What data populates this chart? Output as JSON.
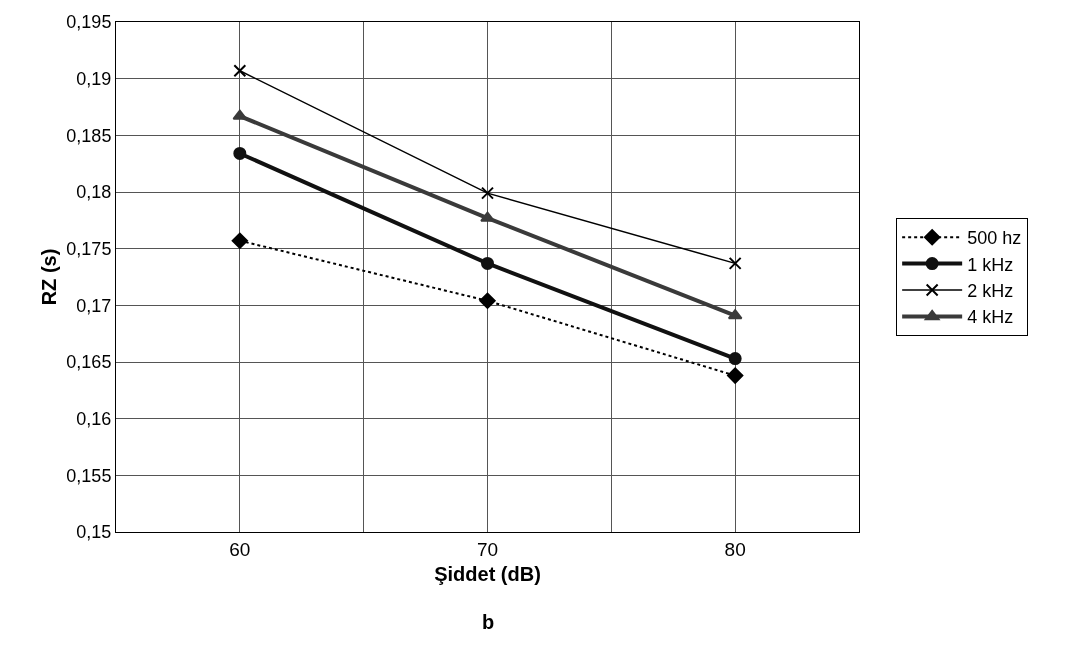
{
  "chart_data": {
    "type": "line",
    "xlabel": "Şiddet (dB)",
    "ylabel": "RZ (s)",
    "annotations": [
      "b"
    ],
    "x": [
      60,
      70,
      80
    ],
    "series": [
      {
        "name": "500 hz",
        "color": "#000000",
        "values": [
          0.1757,
          0.1704,
          0.1638
        ],
        "marker": "diamond",
        "line_style": "dotted"
      },
      {
        "name": "1 kHz",
        "color": "#111111",
        "values": [
          0.1834,
          0.1737,
          0.1653
        ],
        "marker": "circle",
        "line_style": "solid"
      },
      {
        "name": "2 kHz",
        "color": "#000000",
        "values": [
          0.1907,
          0.1799,
          0.1737
        ],
        "marker": "cross",
        "line_style": "solid"
      },
      {
        "name": "4 kHz",
        "color": "#3a3a3a",
        "values": [
          0.1867,
          0.1777,
          0.1691
        ],
        "marker": "triangle",
        "line_style": "solid"
      }
    ],
    "xlim": [
      55,
      85
    ],
    "xticks": [
      {
        "value": 55,
        "label": null
      },
      60,
      {
        "value": 65,
        "label": null
      },
      70,
      {
        "value": 75,
        "label": null
      },
      80,
      {
        "value": 85,
        "label": null
      }
    ],
    "ylim": [
      0.15,
      0.195
    ],
    "yticks": [
      {
        "value": 0.15,
        "label": "0,15"
      },
      {
        "value": 0.155,
        "label": "0,155"
      },
      {
        "value": 0.16,
        "label": "0,16"
      },
      {
        "value": 0.165,
        "label": "0,165"
      },
      {
        "value": 0.17,
        "label": "0,17"
      },
      {
        "value": 0.175,
        "label": "0,175"
      },
      {
        "value": 0.18,
        "label": "0,18"
      },
      {
        "value": 0.185,
        "label": "0,185"
      },
      {
        "value": 0.19,
        "label": "0,19"
      },
      {
        "value": 0.195,
        "label": "0,195"
      }
    ],
    "grid": true,
    "legend": "right"
  }
}
